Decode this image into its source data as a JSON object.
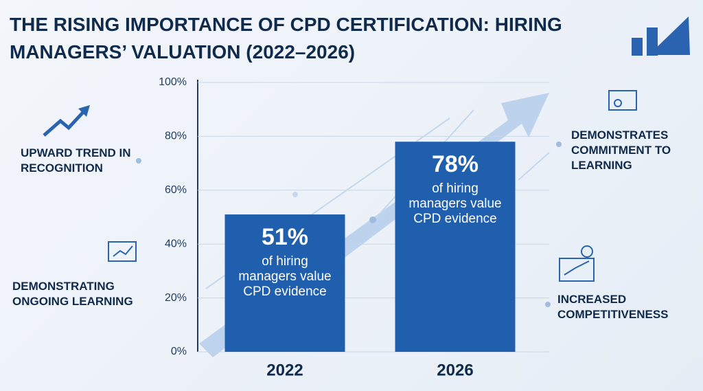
{
  "chart_data": {
    "type": "bar",
    "title": "THE RISING IMPORTANCE OF CPD CERTIFICATION: HIRING MANAGERS’ VALUATION (2022–2026)",
    "categories": [
      "2022",
      "2026"
    ],
    "values": [
      51,
      78
    ],
    "value_labels": [
      "51%",
      "78%"
    ],
    "bar_captions": [
      "of hiring managers value CPD evidence",
      "of hiring managers value CPD evidence"
    ],
    "color": "#1f5fae",
    "ylim": [
      0,
      100
    ],
    "yticks": [
      {
        "value": 0,
        "label": "0%"
      },
      {
        "value": 20,
        "label": "20%"
      },
      {
        "value": 40,
        "label": "40%"
      },
      {
        "value": 60,
        "label": "60%"
      },
      {
        "value": 80,
        "label": "80%"
      },
      {
        "value": 100,
        "label": "100%"
      }
    ],
    "grid": true,
    "annotations": [
      "UPWARD TREND IN RECOGNITION",
      "DEMONSTRATING ONGOING LEARNING",
      "DEMONSTRATES COMMITMENT TO LEARNING",
      "INCREASED COMPETITIVENESS"
    ]
  }
}
